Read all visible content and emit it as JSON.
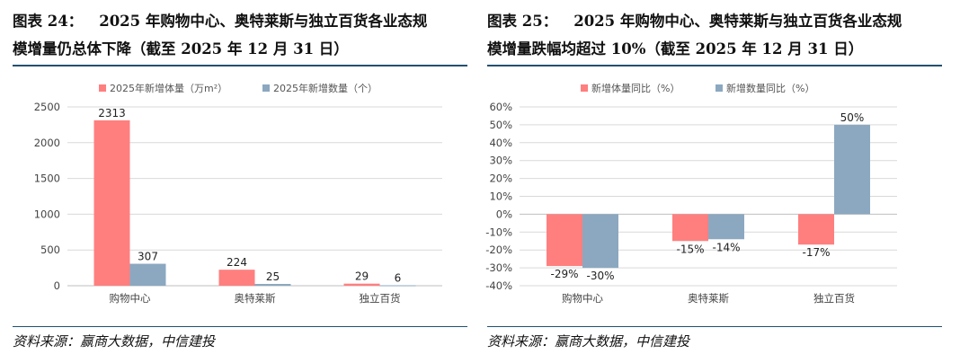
{
  "colors": {
    "series_a": "#ff7f7f",
    "series_b": "#8ba8c0",
    "rule": "#23506f",
    "grid": "#d9d9d9",
    "axis": "#bfbfbf"
  },
  "charts": [
    {
      "label": "图表 24：",
      "title_line1": "2025 年购物中心、奥特莱斯与独立百货各业态规",
      "title_line2": "模增量仍总体下降（截至 2025 年 12 月 31 日）",
      "source": "资料来源：赢商大数据，中信建投"
    },
    {
      "label": "图表 25：",
      "title_line1": "2025 年购物中心、奥特莱斯与独立百货各业态规",
      "title_line2": "模增量跌幅均超过 10%（截至 2025 年 12 月 31 日）",
      "source": "资料来源：赢商大数据，中信建投"
    }
  ],
  "chart_data": [
    {
      "type": "bar",
      "categories": [
        "购物中心",
        "奥特莱斯",
        "独立百货"
      ],
      "series": [
        {
          "name": "2025年新增体量（万m²）",
          "values": [
            2313,
            224,
            29
          ],
          "labels": [
            "2313",
            "224",
            "29"
          ]
        },
        {
          "name": "2025年新增数量（个）",
          "values": [
            307,
            25,
            6
          ],
          "labels": [
            "307",
            "25",
            "6"
          ]
        }
      ],
      "ylim": [
        0,
        2500
      ],
      "yticks": [
        0,
        500,
        1000,
        1500,
        2000,
        2500
      ],
      "ytick_labels": [
        "0",
        "500",
        "1000",
        "1500",
        "2000",
        "2500"
      ],
      "grid": true,
      "legend": "top"
    },
    {
      "type": "bar",
      "categories": [
        "购物中心",
        "奥特莱斯",
        "独立百货"
      ],
      "series": [
        {
          "name": "新增体量同比（%）",
          "values": [
            -29,
            -15,
            -17
          ],
          "labels": [
            "-29%",
            "-15%",
            "-17%"
          ]
        },
        {
          "name": "新增数量同比（%）",
          "values": [
            -30,
            -14,
            50
          ],
          "labels": [
            "-30%",
            "-14%",
            "50%"
          ]
        }
      ],
      "ylim": [
        -40,
        60
      ],
      "yticks": [
        -40,
        -30,
        -20,
        -10,
        0,
        10,
        20,
        30,
        40,
        50,
        60
      ],
      "ytick_labels": [
        "-40%",
        "-30%",
        "-20%",
        "-10%",
        "0%",
        "10%",
        "20%",
        "30%",
        "40%",
        "50%",
        "60%"
      ],
      "grid": true,
      "legend": "top"
    }
  ]
}
